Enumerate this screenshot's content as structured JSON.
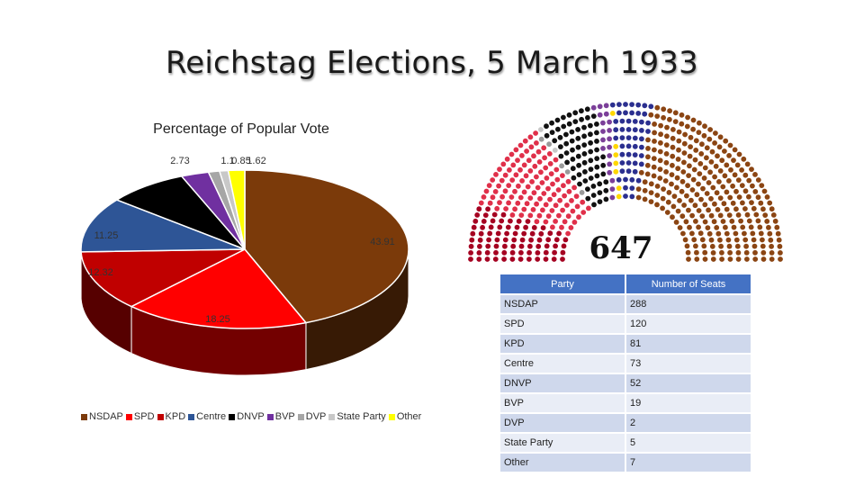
{
  "title": "Reichstag Elections, 5 March 1933",
  "chart_data": [
    {
      "type": "pie",
      "title": "Percentage of Popular Vote",
      "categories": [
        "NSDAP",
        "SPD",
        "KPD",
        "Centre",
        "DNVP",
        "BVP",
        "DVP",
        "State Party",
        "Other"
      ],
      "values": [
        43.91,
        18.25,
        12.32,
        11.25,
        7.97,
        2.73,
        1.1,
        0.85,
        1.62
      ],
      "labels": [
        "43.91",
        "18.25",
        "12.32",
        "11.25",
        "",
        "2.73",
        "1.1",
        "0.85",
        "1.62"
      ],
      "colors": [
        "#7b3a0a",
        "#ff0000",
        "#c00000",
        "#2e5596",
        "#000000",
        "#7030a0",
        "#a6a6a6",
        "#c8c8c8",
        "#ffff00"
      ],
      "legend": "bottom"
    },
    {
      "type": "table",
      "columns": [
        "Party",
        "Number of Seats"
      ],
      "rows": [
        [
          "NSDAP",
          "288"
        ],
        [
          "SPD",
          "120"
        ],
        [
          "KPD",
          "81"
        ],
        [
          "Centre",
          "73"
        ],
        [
          "DNVP",
          "52"
        ],
        [
          "BVP",
          "19"
        ],
        [
          "DVP",
          "2"
        ],
        [
          "State Party",
          "5"
        ],
        [
          "Other",
          "7"
        ]
      ],
      "total": "647"
    }
  ]
}
